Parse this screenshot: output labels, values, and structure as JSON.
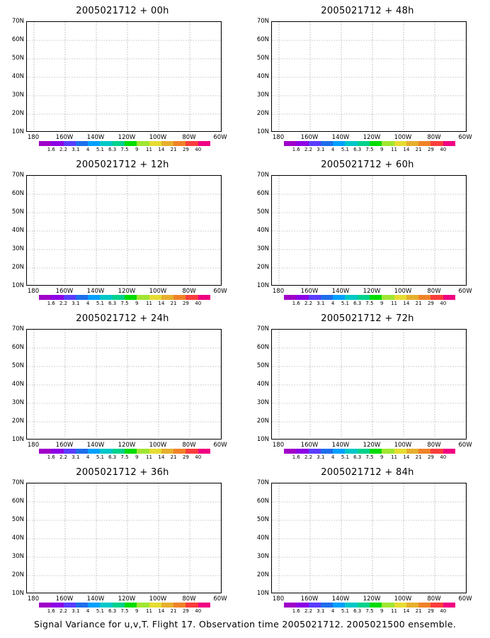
{
  "panels": [
    {
      "title": "2005021712 + 00h",
      "level": 0
    },
    {
      "title": "2005021712 + 48h",
      "level": 4
    },
    {
      "title": "2005021712 + 12h",
      "level": 1
    },
    {
      "title": "2005021712 + 60h",
      "level": 5
    },
    {
      "title": "2005021712 + 24h",
      "level": 2
    },
    {
      "title": "2005021712 + 72h",
      "level": 6
    },
    {
      "title": "2005021712 + 36h",
      "level": 3
    },
    {
      "title": "2005021712 + 84h",
      "level": 7
    }
  ],
  "y_labels": [
    "70N",
    "60N",
    "50N",
    "40N",
    "30N",
    "20N",
    "10N"
  ],
  "x_labels": [
    "180",
    "160W",
    "140W",
    "120W",
    "100W",
    "80W",
    "60W"
  ],
  "colorbar_labels": [
    "1.6",
    "2.2",
    "3.1",
    "4",
    "5.1",
    "6.3",
    "7.5",
    "9",
    "11",
    "14",
    "21",
    "29",
    "40"
  ],
  "colorbar_colors": [
    "#a000c8",
    "#8c00e6",
    "#5a3cff",
    "#1e6eeb",
    "#00a0ff",
    "#00c8c8",
    "#00d28c",
    "#00dc00",
    "#a0e632",
    "#e6dc32",
    "#e6af2d",
    "#f08228",
    "#fa3c3c",
    "#f00082"
  ],
  "palette": {
    "light": "#a02fd8",
    "mid": "#6a3bf0",
    "deep": "#3f6ff0",
    "cyan": "#29b0e8",
    "green": "#25d7a0"
  },
  "footer": "Signal Variance for u,v,T. Flight 17. Observation time 2005021712. 2005021500 ensemble."
}
